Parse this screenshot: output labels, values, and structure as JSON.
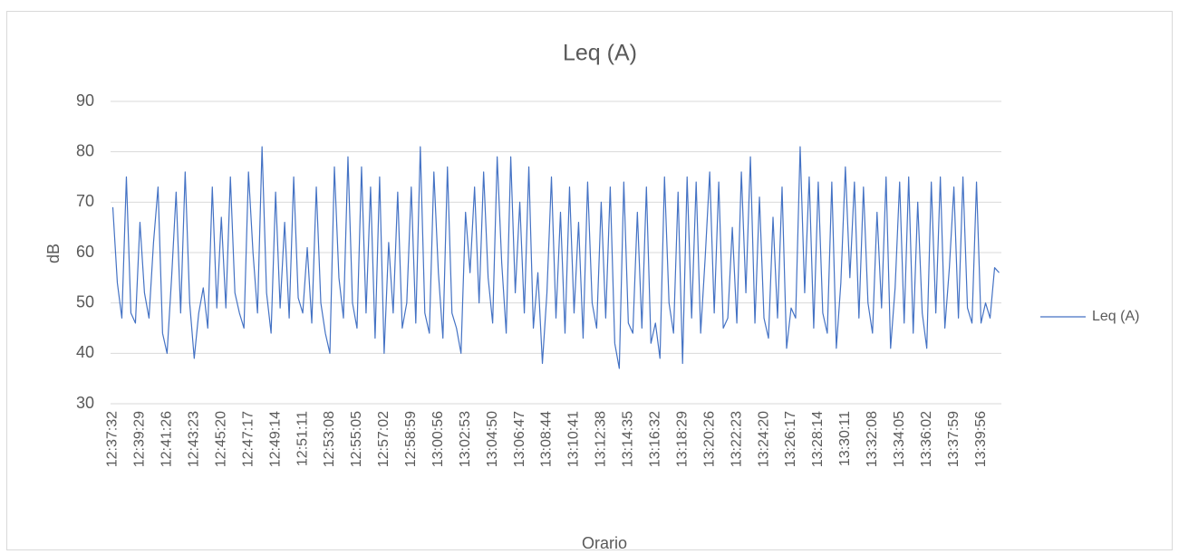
{
  "chart_data": {
    "type": "line",
    "title": "Leq (A)",
    "x_label": "Orario",
    "y_label": "dB",
    "categories": [
      "12:37:32",
      null,
      null,
      null,
      null,
      null,
      "12:39:29",
      null,
      null,
      null,
      null,
      null,
      "12:41:26",
      null,
      null,
      null,
      null,
      null,
      "12:43:23",
      null,
      null,
      null,
      null,
      null,
      "12:45:20",
      null,
      null,
      null,
      null,
      null,
      "12:47:17",
      null,
      null,
      null,
      null,
      null,
      "12:49:14",
      null,
      null,
      null,
      null,
      null,
      "12:51:11",
      null,
      null,
      null,
      null,
      null,
      "12:53:08",
      null,
      null,
      null,
      null,
      null,
      "12:55:05",
      null,
      null,
      null,
      null,
      null,
      "12:57:02",
      null,
      null,
      null,
      null,
      null,
      "12:58:59",
      null,
      null,
      null,
      null,
      null,
      "13:00:56",
      null,
      null,
      null,
      null,
      null,
      "13:02:53",
      null,
      null,
      null,
      null,
      null,
      "13:04:50",
      null,
      null,
      null,
      null,
      null,
      "13:06:47",
      null,
      null,
      null,
      null,
      null,
      "13:08:44",
      null,
      null,
      null,
      null,
      null,
      "13:10:41",
      null,
      null,
      null,
      null,
      null,
      "13:12:38",
      null,
      null,
      null,
      null,
      null,
      "13:14:35",
      null,
      null,
      null,
      null,
      null,
      "13:16:32",
      null,
      null,
      null,
      null,
      null,
      "13:18:29",
      null,
      null,
      null,
      null,
      null,
      "13:20:26",
      null,
      null,
      null,
      null,
      null,
      "13:22:23",
      null,
      null,
      null,
      null,
      null,
      "13:24:20",
      null,
      null,
      null,
      null,
      null,
      "13:26:17",
      null,
      null,
      null,
      null,
      null,
      "13:28:14",
      null,
      null,
      null,
      null,
      null,
      "13:30:11",
      null,
      null,
      null,
      null,
      null,
      "13:32:08",
      null,
      null,
      null,
      null,
      null,
      "13:34:05",
      null,
      null,
      null,
      null,
      null,
      "13:36:02",
      null,
      null,
      null,
      null,
      null,
      "13:37:59",
      null,
      null,
      null,
      null,
      null,
      "13:39:56",
      null,
      null,
      null,
      null
    ],
    "series": [
      {
        "name": "Leq (A)",
        "color": "#4472c4",
        "values": [
          69,
          54,
          47,
          75,
          48,
          46,
          66,
          52,
          47,
          62,
          73,
          44,
          40,
          55,
          72,
          48,
          76,
          50,
          39,
          48,
          53,
          45,
          73,
          49,
          67,
          49,
          75,
          52,
          48,
          45,
          76,
          60,
          48,
          81,
          52,
          44,
          72,
          49,
          66,
          47,
          75,
          51,
          48,
          61,
          46,
          73,
          50,
          44,
          40,
          77,
          55,
          47,
          79,
          50,
          45,
          77,
          48,
          73,
          43,
          75,
          40,
          62,
          48,
          72,
          45,
          50,
          73,
          46,
          81,
          48,
          44,
          76,
          56,
          43,
          77,
          48,
          45,
          40,
          68,
          56,
          73,
          50,
          76,
          55,
          46,
          79,
          58,
          44,
          79,
          52,
          70,
          48,
          77,
          45,
          56,
          38,
          52,
          75,
          47,
          68,
          44,
          73,
          48,
          66,
          43,
          74,
          50,
          45,
          70,
          47,
          73,
          42,
          37,
          74,
          46,
          44,
          68,
          45,
          73,
          42,
          46,
          39,
          75,
          50,
          44,
          72,
          38,
          75,
          47,
          74,
          44,
          59,
          76,
          48,
          74,
          45,
          47,
          65,
          46,
          76,
          52,
          79,
          46,
          71,
          47,
          43,
          67,
          47,
          73,
          41,
          49,
          47,
          81,
          52,
          75,
          45,
          74,
          48,
          44,
          74,
          41,
          54,
          77,
          55,
          74,
          47,
          73,
          50,
          44,
          68,
          49,
          75,
          41,
          53,
          74,
          46,
          75,
          44,
          70,
          48,
          41,
          74,
          48,
          75,
          45,
          57,
          73,
          47,
          75,
          49,
          46,
          74,
          46,
          50,
          47,
          57,
          56
        ]
      }
    ],
    "ylim": [
      30,
      90
    ],
    "yticks": [
      30,
      40,
      50,
      60,
      70,
      80,
      90
    ],
    "grid": true,
    "legend": "right"
  }
}
